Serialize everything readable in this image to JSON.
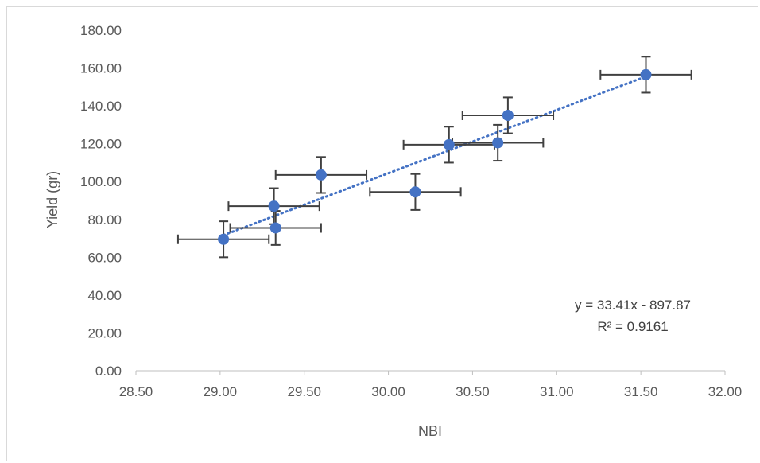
{
  "chart_data": {
    "type": "scatter",
    "xlabel": "NBI",
    "ylabel": "Yield (gr)",
    "xlim": [
      28.5,
      32.0
    ],
    "ylim": [
      0,
      180
    ],
    "x_ticks": [
      "28.50",
      "29.00",
      "29.50",
      "30.00",
      "30.50",
      "31.00",
      "31.50",
      "32.00"
    ],
    "y_ticks": [
      "0.00",
      "20.00",
      "40.00",
      "60.00",
      "80.00",
      "100.00",
      "120.00",
      "140.00",
      "160.00",
      "180.00"
    ],
    "grid": false,
    "legend": "none",
    "marker_color": "#4472c4",
    "errorbar_color": "#404040",
    "points": [
      {
        "x": 29.02,
        "y": 69.5,
        "xerr": 0.27,
        "yerr": 9.5
      },
      {
        "x": 29.33,
        "y": 75.5,
        "xerr": 0.27,
        "yerr": 9.0
      },
      {
        "x": 29.32,
        "y": 87.0,
        "xerr": 0.27,
        "yerr": 9.5
      },
      {
        "x": 29.6,
        "y": 103.5,
        "xerr": 0.27,
        "yerr": 9.5
      },
      {
        "x": 30.16,
        "y": 94.5,
        "xerr": 0.27,
        "yerr": 9.5
      },
      {
        "x": 30.36,
        "y": 119.5,
        "xerr": 0.27,
        "yerr": 9.5
      },
      {
        "x": 30.65,
        "y": 120.5,
        "xerr": 0.27,
        "yerr": 9.5
      },
      {
        "x": 30.71,
        "y": 135.0,
        "xerr": 0.27,
        "yerr": 9.5
      },
      {
        "x": 31.53,
        "y": 156.5,
        "xerr": 0.27,
        "yerr": 9.5
      }
    ],
    "trendline": {
      "slope": 33.41,
      "intercept": -897.87,
      "x_range": [
        29.02,
        31.53
      ],
      "style": "dotted",
      "color": "#4472c4",
      "equation_label": "y = 33.41x - 897.87",
      "r2_label": "R² = 0.9161"
    }
  }
}
